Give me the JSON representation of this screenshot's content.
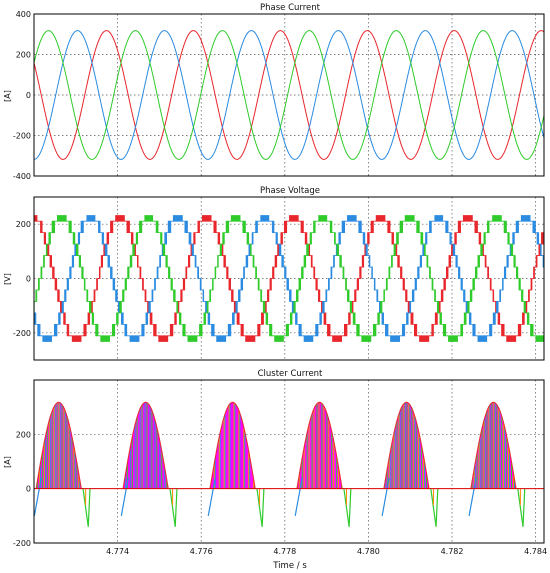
{
  "figure": {
    "x_label": "Time / s"
  },
  "chart_data": [
    {
      "type": "line",
      "title": "Phase Current",
      "ylabel": "[A]",
      "xlabel": "",
      "xlim": [
        4.772,
        4.7842
      ],
      "ylim": [
        -400,
        400
      ],
      "yticks": [
        -400,
        -200,
        0,
        200,
        400
      ],
      "grid": true,
      "series": [
        {
          "color": "#e8262b",
          "kind": "sine",
          "amplitude": 318,
          "period_s": 0.00208,
          "phase_deg": 150
        },
        {
          "color": "#2a8be0",
          "kind": "sine",
          "amplitude": 318,
          "period_s": 0.00208,
          "phase_deg": -90
        },
        {
          "color": "#2fcb2a",
          "kind": "sine",
          "amplitude": 318,
          "period_s": 0.00208,
          "phase_deg": 30
        }
      ]
    },
    {
      "type": "line",
      "title": "Phase Voltage",
      "ylabel": "[V]",
      "xlabel": "",
      "xlim": [
        4.772,
        4.7842
      ],
      "ylim": [
        -300,
        300
      ],
      "yticks": [
        -200,
        0,
        200
      ],
      "grid": true,
      "series": [
        {
          "color": "#e8262b",
          "kind": "stepped-sine",
          "amplitude": 232,
          "period_s": 0.00208,
          "phase_deg": 95
        },
        {
          "color": "#2a8be0",
          "kind": "stepped-sine",
          "amplitude": 232,
          "period_s": 0.00208,
          "phase_deg": -145
        },
        {
          "color": "#2fcb2a",
          "kind": "stepped-sine",
          "amplitude": 232,
          "period_s": 0.00208,
          "phase_deg": -25
        }
      ]
    },
    {
      "type": "line",
      "title": "Cluster Current",
      "ylabel": "[A]",
      "xlabel": "",
      "xlim": [
        4.772,
        4.7842
      ],
      "ylim": [
        -200,
        400
      ],
      "yticks": [
        -200,
        0,
        200
      ],
      "xticks": [
        "4.774",
        "4.776",
        "4.778",
        "4.780",
        "4.782",
        "4.784"
      ],
      "grid": true,
      "envelope_peak": 318,
      "series": [
        {
          "color": "#ff00ff",
          "kind": "pulses"
        },
        {
          "color": "#e8262b",
          "kind": "pulses"
        },
        {
          "color": "#2a8be0",
          "kind": "pulses"
        },
        {
          "color": "#2fcb2a",
          "kind": "pulses"
        },
        {
          "color": "#ff8c00",
          "kind": "pulses"
        }
      ]
    }
  ]
}
